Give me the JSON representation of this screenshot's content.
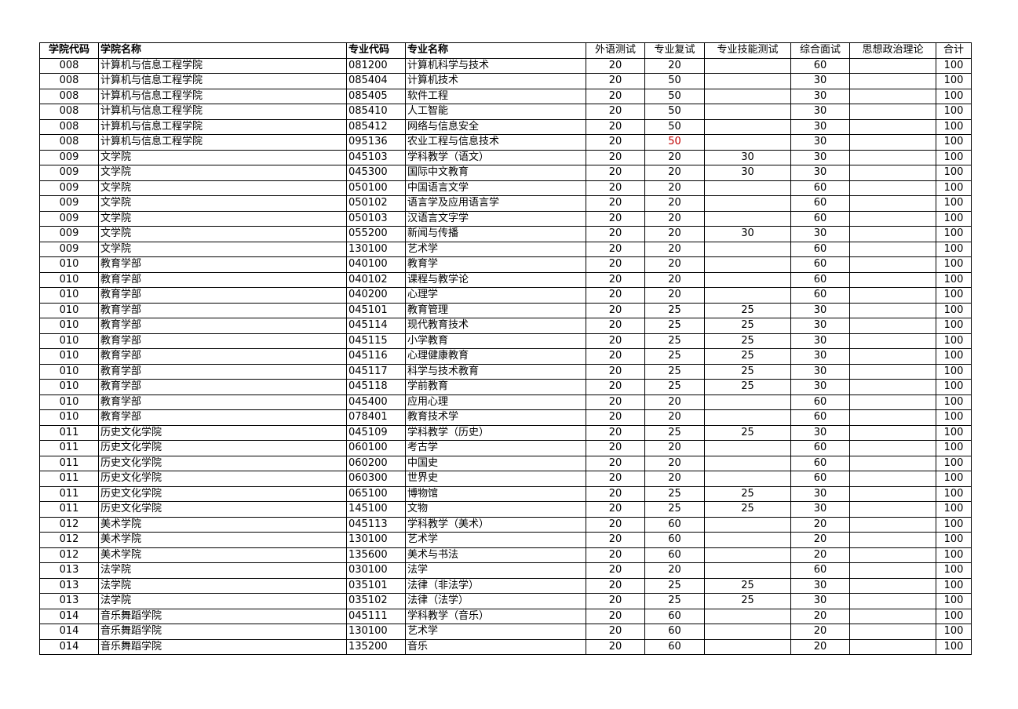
{
  "headers": [
    "学院代码",
    "学院名称",
    "专业代码",
    "专业名称",
    "外语测试",
    "专业复试",
    "专业技能测试",
    "综合面试",
    "思想政治理论",
    "合计"
  ],
  "highlight_color": "#c00000",
  "rows": [
    [
      "008",
      "计算机与信息工程学院",
      "081200",
      "计算机科学与技术",
      "20",
      "20",
      "",
      "60",
      "",
      "100"
    ],
    [
      "008",
      "计算机与信息工程学院",
      "085404",
      "计算机技术",
      "20",
      "50",
      "",
      "30",
      "",
      "100"
    ],
    [
      "008",
      "计算机与信息工程学院",
      "085405",
      "软件工程",
      "20",
      "50",
      "",
      "30",
      "",
      "100"
    ],
    [
      "008",
      "计算机与信息工程学院",
      "085410",
      "人工智能",
      "20",
      "50",
      "",
      "30",
      "",
      "100"
    ],
    [
      "008",
      "计算机与信息工程学院",
      "085412",
      "网络与信息安全",
      "20",
      "50",
      "",
      "30",
      "",
      "100"
    ],
    [
      "008",
      "计算机与信息工程学院",
      "095136",
      "农业工程与信息技术",
      "20",
      "50",
      "",
      "30",
      "",
      "100"
    ],
    [
      "009",
      "文学院",
      "045103",
      "学科教学（语文）",
      "20",
      "20",
      "30",
      "30",
      "",
      "100"
    ],
    [
      "009",
      "文学院",
      "045300",
      "国际中文教育",
      "20",
      "20",
      "30",
      "30",
      "",
      "100"
    ],
    [
      "009",
      "文学院",
      "050100",
      "中国语言文学",
      "20",
      "20",
      "",
      "60",
      "",
      "100"
    ],
    [
      "009",
      "文学院",
      "050102",
      "语言学及应用语言学",
      "20",
      "20",
      "",
      "60",
      "",
      "100"
    ],
    [
      "009",
      "文学院",
      "050103",
      "汉语言文字学",
      "20",
      "20",
      "",
      "60",
      "",
      "100"
    ],
    [
      "009",
      "文学院",
      "055200",
      "新闻与传播",
      "20",
      "20",
      "30",
      "30",
      "",
      "100"
    ],
    [
      "009",
      "文学院",
      "130100",
      "艺术学",
      "20",
      "20",
      "",
      "60",
      "",
      "100"
    ],
    [
      "010",
      "教育学部",
      "040100",
      "教育学",
      "20",
      "20",
      "",
      "60",
      "",
      "100"
    ],
    [
      "010",
      "教育学部",
      "040102",
      "课程与教学论",
      "20",
      "20",
      "",
      "60",
      "",
      "100"
    ],
    [
      "010",
      "教育学部",
      "040200",
      "心理学",
      "20",
      "20",
      "",
      "60",
      "",
      "100"
    ],
    [
      "010",
      "教育学部",
      "045101",
      "教育管理",
      "20",
      "25",
      "25",
      "30",
      "",
      "100"
    ],
    [
      "010",
      "教育学部",
      "045114",
      "现代教育技术",
      "20",
      "25",
      "25",
      "30",
      "",
      "100"
    ],
    [
      "010",
      "教育学部",
      "045115",
      "小学教育",
      "20",
      "25",
      "25",
      "30",
      "",
      "100"
    ],
    [
      "010",
      "教育学部",
      "045116",
      "心理健康教育",
      "20",
      "25",
      "25",
      "30",
      "",
      "100"
    ],
    [
      "010",
      "教育学部",
      "045117",
      "科学与技术教育",
      "20",
      "25",
      "25",
      "30",
      "",
      "100"
    ],
    [
      "010",
      "教育学部",
      "045118",
      "学前教育",
      "20",
      "25",
      "25",
      "30",
      "",
      "100"
    ],
    [
      "010",
      "教育学部",
      "045400",
      "应用心理",
      "20",
      "20",
      "",
      "60",
      "",
      "100"
    ],
    [
      "010",
      "教育学部",
      "078401",
      "教育技术学",
      "20",
      "20",
      "",
      "60",
      "",
      "100"
    ],
    [
      "011",
      "历史文化学院",
      "045109",
      "学科教学（历史）",
      "20",
      "25",
      "25",
      "30",
      "",
      "100"
    ],
    [
      "011",
      "历史文化学院",
      "060100",
      "考古学",
      "20",
      "20",
      "",
      "60",
      "",
      "100"
    ],
    [
      "011",
      "历史文化学院",
      "060200",
      "中国史",
      "20",
      "20",
      "",
      "60",
      "",
      "100"
    ],
    [
      "011",
      "历史文化学院",
      "060300",
      "世界史",
      "20",
      "20",
      "",
      "60",
      "",
      "100"
    ],
    [
      "011",
      "历史文化学院",
      "065100",
      "博物馆",
      "20",
      "25",
      "25",
      "30",
      "",
      "100"
    ],
    [
      "011",
      "历史文化学院",
      "145100",
      "文物",
      "20",
      "25",
      "25",
      "30",
      "",
      "100"
    ],
    [
      "012",
      "美术学院",
      "045113",
      "学科教学（美术）",
      "20",
      "60",
      "",
      "20",
      "",
      "100"
    ],
    [
      "012",
      "美术学院",
      "130100",
      "艺术学",
      "20",
      "60",
      "",
      "20",
      "",
      "100"
    ],
    [
      "012",
      "美术学院",
      "135600",
      "美术与书法",
      "20",
      "60",
      "",
      "20",
      "",
      "100"
    ],
    [
      "013",
      "法学院",
      "030100",
      "法学",
      "20",
      "20",
      "",
      "60",
      "",
      "100"
    ],
    [
      "013",
      "法学院",
      "035101",
      "法律（非法学）",
      "20",
      "25",
      "25",
      "30",
      "",
      "100"
    ],
    [
      "013",
      "法学院",
      "035102",
      "法律（法学）",
      "20",
      "25",
      "25",
      "30",
      "",
      "100"
    ],
    [
      "014",
      "音乐舞蹈学院",
      "045111",
      "学科教学（音乐）",
      "20",
      "60",
      "",
      "20",
      "",
      "100"
    ],
    [
      "014",
      "音乐舞蹈学院",
      "130100",
      "艺术学",
      "20",
      "60",
      "",
      "20",
      "",
      "100"
    ],
    [
      "014",
      "音乐舞蹈学院",
      "135200",
      "音乐",
      "20",
      "60",
      "",
      "20",
      "",
      "100"
    ]
  ],
  "red_cells": [
    [
      5,
      5
    ]
  ]
}
